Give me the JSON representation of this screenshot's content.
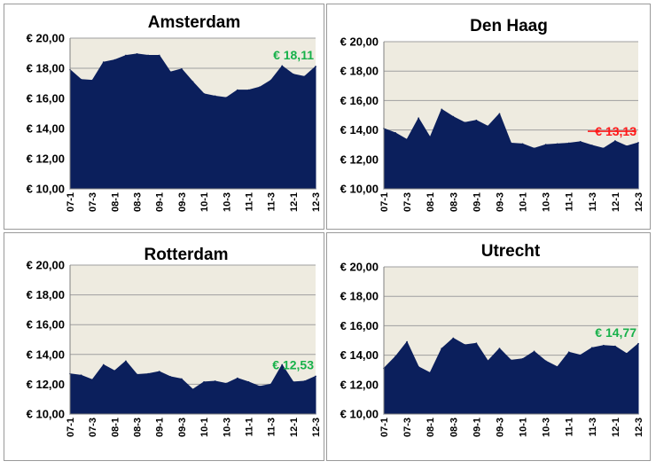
{
  "colors": {
    "plot_bg": "#eeebe0",
    "area": "#0b1f5c",
    "grid": "#9f9f9f",
    "up": "#17b14a",
    "down": "#ff1a1a"
  },
  "chart_data": [
    {
      "type": "area",
      "title": "Amsterdam",
      "x": [
        "07-1",
        "07-2",
        "07-3",
        "07-4",
        "08-1",
        "08-2",
        "08-3",
        "08-4",
        "09-1",
        "09-2",
        "09-3",
        "09-4",
        "10-1",
        "10-2",
        "10-3",
        "10-4",
        "11-1",
        "11-2",
        "11-3",
        "11-4",
        "12-1",
        "12-2",
        "12-3"
      ],
      "values": [
        17.9,
        17.25,
        17.2,
        18.4,
        18.55,
        18.85,
        18.95,
        18.85,
        18.85,
        17.75,
        17.95,
        17.1,
        16.3,
        16.15,
        16.05,
        16.55,
        16.55,
        16.75,
        17.2,
        18.15,
        17.6,
        17.45,
        18.11
      ],
      "xtick_labels": [
        "07-1",
        "07-3",
        "08-1",
        "08-3",
        "09-1",
        "09-3",
        "10-1",
        "10-3",
        "11-1",
        "11-3",
        "12-1",
        "12-3"
      ],
      "yticks": [
        "€ 10,00",
        "€ 12,00",
        "€ 14,00",
        "€ 16,00",
        "€ 18,00",
        "€ 20,00"
      ],
      "ylim": [
        10,
        20
      ],
      "grid": true,
      "annotation": {
        "text": "€ 18,11",
        "color": "#17b14a",
        "strike": false
      }
    },
    {
      "type": "area",
      "title": "Den Haag",
      "x": [
        "07-1",
        "07-2",
        "07-3",
        "07-4",
        "08-1",
        "08-2",
        "08-3",
        "08-4",
        "09-1",
        "09-2",
        "09-3",
        "09-4",
        "10-1",
        "10-2",
        "10-3",
        "10-4",
        "11-1",
        "11-2",
        "11-3",
        "11-4",
        "12-1",
        "12-2",
        "12-3"
      ],
      "values": [
        14.1,
        13.8,
        13.35,
        14.8,
        13.5,
        15.4,
        14.9,
        14.5,
        14.65,
        14.25,
        15.1,
        13.1,
        13.05,
        12.75,
        13.0,
        13.05,
        13.1,
        13.2,
        12.95,
        12.75,
        13.25,
        12.9,
        13.13
      ],
      "xtick_labels": [
        "07-1",
        "07-3",
        "08-1",
        "08-3",
        "09-1",
        "09-3",
        "10-1",
        "10-3",
        "11-1",
        "11-3",
        "12-1",
        "12-3"
      ],
      "yticks": [
        "€ 10,00",
        "€ 12,00",
        "€ 14,00",
        "€ 16,00",
        "€ 18,00",
        "€ 20,00"
      ],
      "ylim": [
        10,
        20
      ],
      "grid": true,
      "annotation": {
        "text": "€ 13,13",
        "color": "#ff1a1a",
        "strike": true
      }
    },
    {
      "type": "area",
      "title": "Rotterdam",
      "x": [
        "07-1",
        "07-2",
        "07-3",
        "07-4",
        "08-1",
        "08-2",
        "08-3",
        "08-4",
        "09-1",
        "09-2",
        "09-3",
        "09-4",
        "10-1",
        "10-2",
        "10-3",
        "10-4",
        "11-1",
        "11-2",
        "11-3",
        "11-4",
        "12-1",
        "12-2",
        "12-3"
      ],
      "values": [
        12.7,
        12.6,
        12.3,
        13.3,
        12.9,
        13.55,
        12.65,
        12.7,
        12.85,
        12.5,
        12.35,
        11.65,
        12.15,
        12.2,
        12.05,
        12.4,
        12.15,
        11.85,
        12.0,
        13.3,
        12.15,
        12.2,
        12.53
      ],
      "xtick_labels": [
        "07-1",
        "07-3",
        "08-1",
        "08-3",
        "09-1",
        "09-3",
        "10-1",
        "10-3",
        "11-1",
        "11-3",
        "12-1",
        "12-3"
      ],
      "yticks": [
        "€ 10,00",
        "€ 12,00",
        "€ 14,00",
        "€ 16,00",
        "€ 18,00",
        "€ 20,00"
      ],
      "ylim": [
        10,
        20
      ],
      "grid": true,
      "annotation": {
        "text": "€ 12,53",
        "color": "#17b14a",
        "strike": false
      }
    },
    {
      "type": "area",
      "title": "Utrecht",
      "x": [
        "07-1",
        "07-2",
        "07-3",
        "07-4",
        "08-1",
        "08-2",
        "08-3",
        "08-4",
        "09-1",
        "09-2",
        "09-3",
        "09-4",
        "10-1",
        "10-2",
        "10-3",
        "10-4",
        "11-1",
        "11-2",
        "11-3",
        "11-4",
        "12-1",
        "12-2",
        "12-3"
      ],
      "values": [
        13.1,
        13.9,
        14.9,
        13.2,
        12.8,
        14.45,
        15.15,
        14.7,
        14.8,
        13.6,
        14.45,
        13.65,
        13.75,
        14.25,
        13.6,
        13.2,
        14.2,
        14.0,
        14.5,
        14.65,
        14.6,
        14.1,
        14.77
      ],
      "xtick_labels": [
        "07-1",
        "07-3",
        "08-1",
        "08-3",
        "09-1",
        "09-3",
        "10-1",
        "10-3",
        "11-1",
        "11-3",
        "12-1",
        "12-3"
      ],
      "yticks": [
        "€ 10,00",
        "€ 12,00",
        "€ 14,00",
        "€ 16,00",
        "€ 18,00",
        "€ 20,00"
      ],
      "ylim": [
        10,
        20
      ],
      "grid": true,
      "annotation": {
        "text": "€ 14,77",
        "color": "#17b14a",
        "strike": false
      }
    }
  ]
}
